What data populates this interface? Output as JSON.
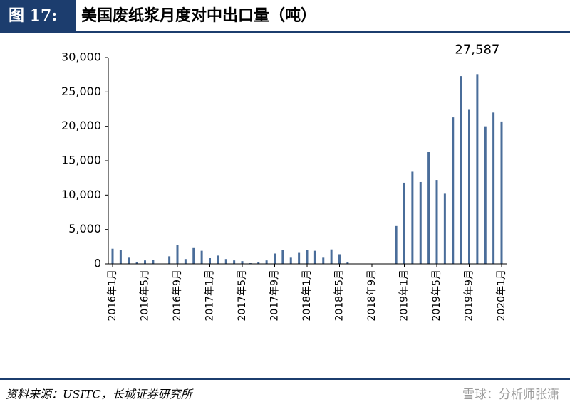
{
  "figure_label": "图 17:",
  "source": "资料来源：USITC，长城证券研究所",
  "watermark": "雪球：分析师张潇",
  "chart_data": {
    "type": "bar",
    "title": "美国废纸浆月度对中出口量（吨）",
    "categories": [
      "2016年1月",
      null,
      null,
      null,
      "2016年5月",
      null,
      null,
      null,
      "2016年9月",
      null,
      null,
      null,
      "2017年1月",
      null,
      null,
      null,
      "2017年5月",
      null,
      null,
      null,
      "2017年9月",
      null,
      null,
      null,
      "2018年1月",
      null,
      null,
      null,
      "2018年5月",
      null,
      null,
      null,
      "2018年9月",
      null,
      null,
      null,
      "2019年1月",
      null,
      null,
      null,
      "2019年5月",
      null,
      null,
      null,
      "2019年9月",
      null,
      null,
      null,
      "2020年1月"
    ],
    "values": [
      2200,
      2000,
      1000,
      300,
      500,
      600,
      0,
      1100,
      2700,
      700,
      2400,
      1900,
      900,
      1200,
      700,
      500,
      400,
      100,
      300,
      500,
      1500,
      2000,
      1000,
      1700,
      2000,
      1900,
      1000,
      2100,
      1400,
      300,
      0,
      0,
      0,
      0,
      0,
      5500,
      11800,
      13400,
      11900,
      16300,
      12200,
      10200,
      21300,
      27300,
      22500,
      27587,
      20000,
      22000,
      20700
    ],
    "value_labels": [
      null,
      null,
      null,
      null,
      null,
      null,
      null,
      null,
      null,
      null,
      null,
      null,
      null,
      null,
      null,
      null,
      null,
      null,
      null,
      null,
      null,
      null,
      null,
      null,
      null,
      null,
      null,
      null,
      null,
      null,
      null,
      null,
      null,
      null,
      null,
      null,
      null,
      null,
      null,
      null,
      null,
      null,
      null,
      null,
      null,
      "27,587",
      null,
      null,
      null
    ],
    "color": "#4a6d9a",
    "ylim": [
      0,
      30000
    ],
    "yticks": [
      0,
      {
        "value": 5000,
        "label": "5,000"
      },
      {
        "value": 10000,
        "label": "10,000"
      },
      {
        "value": 15000,
        "label": "15,000"
      },
      {
        "value": 20000,
        "label": "20,000"
      },
      {
        "value": 25000,
        "label": "25,000"
      },
      {
        "value": 30000,
        "label": "30,000"
      }
    ]
  }
}
